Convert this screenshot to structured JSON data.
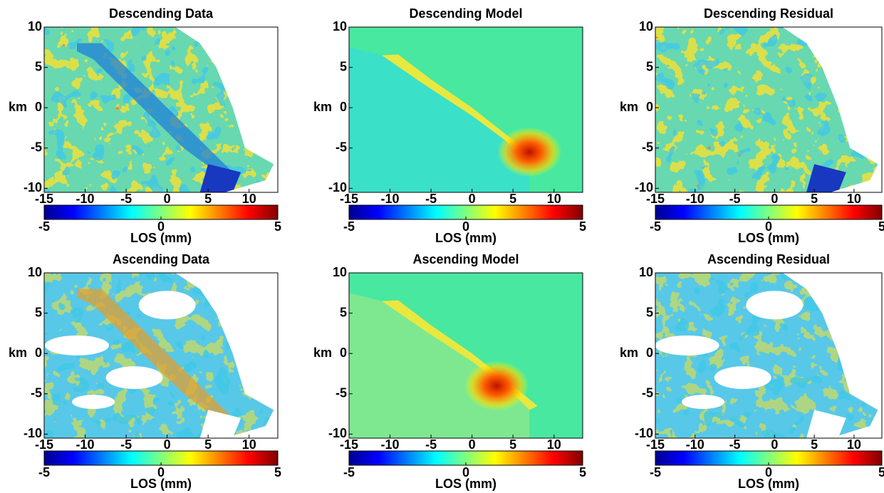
{
  "chart_data": [
    {
      "type": "map",
      "title": "Descending Data",
      "ylabel": "km",
      "xlim": [
        -15,
        13.5
      ],
      "ylim": [
        -10.5,
        10
      ],
      "xticks": [
        -15,
        -10,
        -5,
        0,
        5,
        10
      ],
      "yticks": [
        -10,
        -5,
        0,
        5,
        10
      ],
      "colormap": "jet",
      "colorbar": {
        "label": "LOS (mm)",
        "lim": [
          -5,
          5
        ],
        "ticks": [
          -5,
          0,
          5
        ]
      }
    },
    {
      "type": "map",
      "title": "Descending Model",
      "ylabel": "km",
      "xlim": [
        -15,
        13.5
      ],
      "ylim": [
        -10.5,
        10
      ],
      "xticks": [
        -15,
        -10,
        -5,
        0,
        5,
        10
      ],
      "yticks": [
        -10,
        -5,
        0,
        5,
        10
      ],
      "colormap": "jet",
      "colorbar": {
        "label": "LOS (mm)",
        "lim": [
          -5,
          5
        ],
        "ticks": [
          -5,
          0,
          5
        ]
      }
    },
    {
      "type": "map",
      "title": "Descending Residual",
      "ylabel": "km",
      "xlim": [
        -15,
        13.5
      ],
      "ylim": [
        -10.5,
        10
      ],
      "xticks": [
        -15,
        -10,
        -5,
        0,
        5,
        10
      ],
      "yticks": [
        -10,
        -5,
        0,
        5,
        10
      ],
      "colormap": "jet",
      "colorbar": {
        "label": "LOS (mm)",
        "lim": [
          -5,
          5
        ],
        "ticks": [
          -5,
          0,
          5
        ]
      }
    },
    {
      "type": "map",
      "title": "Ascending Data",
      "ylabel": "km",
      "xlim": [
        -15,
        13.5
      ],
      "ylim": [
        -10.5,
        10
      ],
      "xticks": [
        -15,
        -10,
        -5,
        0,
        5,
        10
      ],
      "yticks": [
        -10,
        -5,
        0,
        5,
        10
      ],
      "colormap": "jet",
      "colorbar": {
        "label": "LOS (mm)",
        "lim": [
          -5,
          5
        ],
        "ticks": [
          -5,
          0,
          5
        ]
      }
    },
    {
      "type": "map",
      "title": "Ascending Model",
      "ylabel": "km",
      "xlim": [
        -15,
        13.5
      ],
      "ylim": [
        -10.5,
        10
      ],
      "xticks": [
        -15,
        -10,
        -5,
        0,
        5,
        10
      ],
      "yticks": [
        -10,
        -5,
        0,
        5,
        10
      ],
      "colormap": "jet",
      "colorbar": {
        "label": "LOS (mm)",
        "lim": [
          -5,
          5
        ],
        "ticks": [
          -5,
          0,
          5
        ]
      }
    },
    {
      "type": "map",
      "title": "Ascending Residual",
      "ylabel": "km",
      "xlim": [
        -15,
        13.5
      ],
      "ylim": [
        -10.5,
        10
      ],
      "xticks": [
        -15,
        -10,
        -5,
        0,
        5,
        10
      ],
      "yticks": [
        -10,
        -5,
        0,
        5,
        10
      ],
      "colormap": "jet",
      "colorbar": {
        "label": "LOS (mm)",
        "lim": [
          -5,
          5
        ],
        "ticks": [
          -5,
          0,
          5
        ]
      }
    }
  ]
}
